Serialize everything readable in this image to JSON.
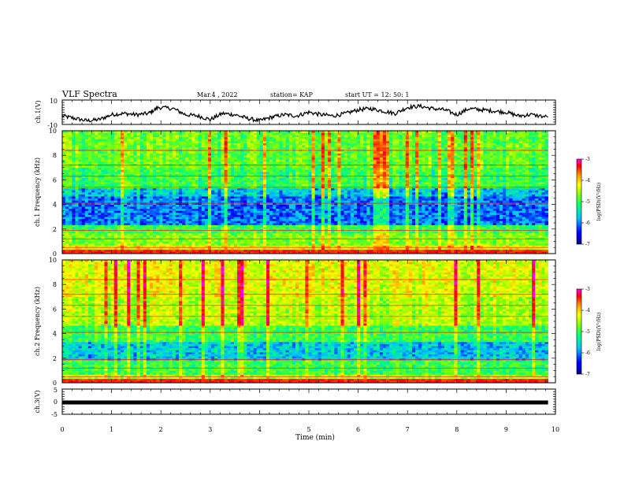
{
  "header": {
    "title": "VLF Spectra",
    "date": "Mar.4 , 2022",
    "station": "station= KAP",
    "start_ut": "start UT =   12: 50: 1"
  },
  "chart_data": [
    {
      "type": "line",
      "panel": "ch1-waveform",
      "ylabel": "ch.1(V)",
      "ylim": [
        -10,
        10
      ],
      "y_ticks": [
        "10",
        "-10"
      ],
      "xlim": [
        0,
        9.85
      ],
      "series": [
        {
          "x": [
            0,
            0.25,
            0.5,
            0.75,
            1.0,
            1.25,
            1.5,
            1.75,
            1.95,
            2.25,
            2.5,
            2.75,
            3.0,
            3.25,
            3.5,
            3.75,
            4.0,
            4.25,
            4.5,
            4.75,
            5.0,
            5.25,
            5.5,
            5.75,
            6.0,
            6.25,
            6.5,
            6.75,
            7.0,
            7.25,
            7.5,
            7.75,
            8.0,
            8.25,
            8.5,
            8.75,
            9.0,
            9.25,
            9.5,
            9.85
          ],
          "y": [
            -3,
            -5,
            -7,
            -6,
            -2,
            -1,
            -2,
            -1,
            4,
            3,
            -2,
            -3,
            -6,
            -1,
            -2,
            -5,
            -7,
            -4,
            -2,
            -3,
            0,
            -2,
            -3,
            -1,
            2,
            3,
            1,
            -1,
            4,
            5,
            3,
            2,
            -2,
            3,
            2,
            1,
            0,
            -3,
            -2,
            -4
          ]
        }
      ]
    },
    {
      "type": "heatmap",
      "panel": "ch1-spectrogram",
      "ylabel": "ch.1 Frequency (kHz)",
      "ylim": [
        0,
        10
      ],
      "y_ticks": [
        "0",
        "2",
        "4",
        "6",
        "8",
        "10"
      ],
      "xlim": [
        0,
        9.85
      ],
      "freq_bands_kHz": [
        {
          "from": 0.0,
          "to": 0.7,
          "level": -4.5
        },
        {
          "from": 0.7,
          "to": 1.6,
          "level": -5.0
        },
        {
          "from": 1.6,
          "to": 2.3,
          "level": -5.3
        },
        {
          "from": 2.3,
          "to": 4.6,
          "level": -6.2
        },
        {
          "from": 4.6,
          "to": 5.4,
          "level": -5.9
        },
        {
          "from": 5.4,
          "to": 7.0,
          "level": -5.3
        },
        {
          "from": 7.0,
          "to": 10.0,
          "level": -5.1
        }
      ],
      "colorbar": {
        "label": "log(PSD)(V²/Hz)",
        "range": [
          -7,
          -3
        ],
        "ticks": [
          "-3",
          "-4",
          "-5",
          "-6",
          "-7"
        ]
      }
    },
    {
      "type": "heatmap",
      "panel": "ch2-spectrogram",
      "ylabel": "ch.2 Frequency (kHz)",
      "ylim": [
        0,
        10
      ],
      "y_ticks": [
        "0",
        "2",
        "4",
        "6",
        "8",
        "10"
      ],
      "xlim": [
        0,
        9.85
      ],
      "freq_bands_kHz": [
        {
          "from": 0.0,
          "to": 0.6,
          "level": -4.8
        },
        {
          "from": 0.6,
          "to": 1.8,
          "level": -5.3
        },
        {
          "from": 1.8,
          "to": 3.4,
          "level": -5.9
        },
        {
          "from": 3.4,
          "to": 4.6,
          "level": -5.3
        },
        {
          "from": 4.6,
          "to": 7.0,
          "level": -4.8
        },
        {
          "from": 7.0,
          "to": 10.0,
          "level": -4.6
        }
      ],
      "colorbar": {
        "label": "log(PSD)(V²/Hz)",
        "range": [
          -7,
          -3
        ],
        "ticks": [
          "-3",
          "-4",
          "-5",
          "-6",
          "-7"
        ]
      }
    },
    {
      "type": "line",
      "panel": "ch3-waveform",
      "ylabel": "ch.3(V)",
      "ylim": [
        -5,
        5
      ],
      "y_ticks": [
        "5",
        "0",
        "-5"
      ],
      "xlim": [
        0,
        9.85
      ],
      "series": [
        {
          "x": [
            0,
            9.85
          ],
          "y": [
            0,
            0
          ]
        }
      ]
    }
  ],
  "x_axis": {
    "label": "Time  (min)",
    "range": [
      0,
      10
    ],
    "ticks": [
      "0",
      "1",
      "2",
      "3",
      "4",
      "5",
      "6",
      "7",
      "8",
      "9",
      "10"
    ]
  },
  "colors": {
    "colormap": [
      "#00008b",
      "#0000ff",
      "#00bfff",
      "#00ff7f",
      "#7fff00",
      "#ffff00",
      "#ff8c00",
      "#ff0000",
      "#ff00ff"
    ]
  }
}
